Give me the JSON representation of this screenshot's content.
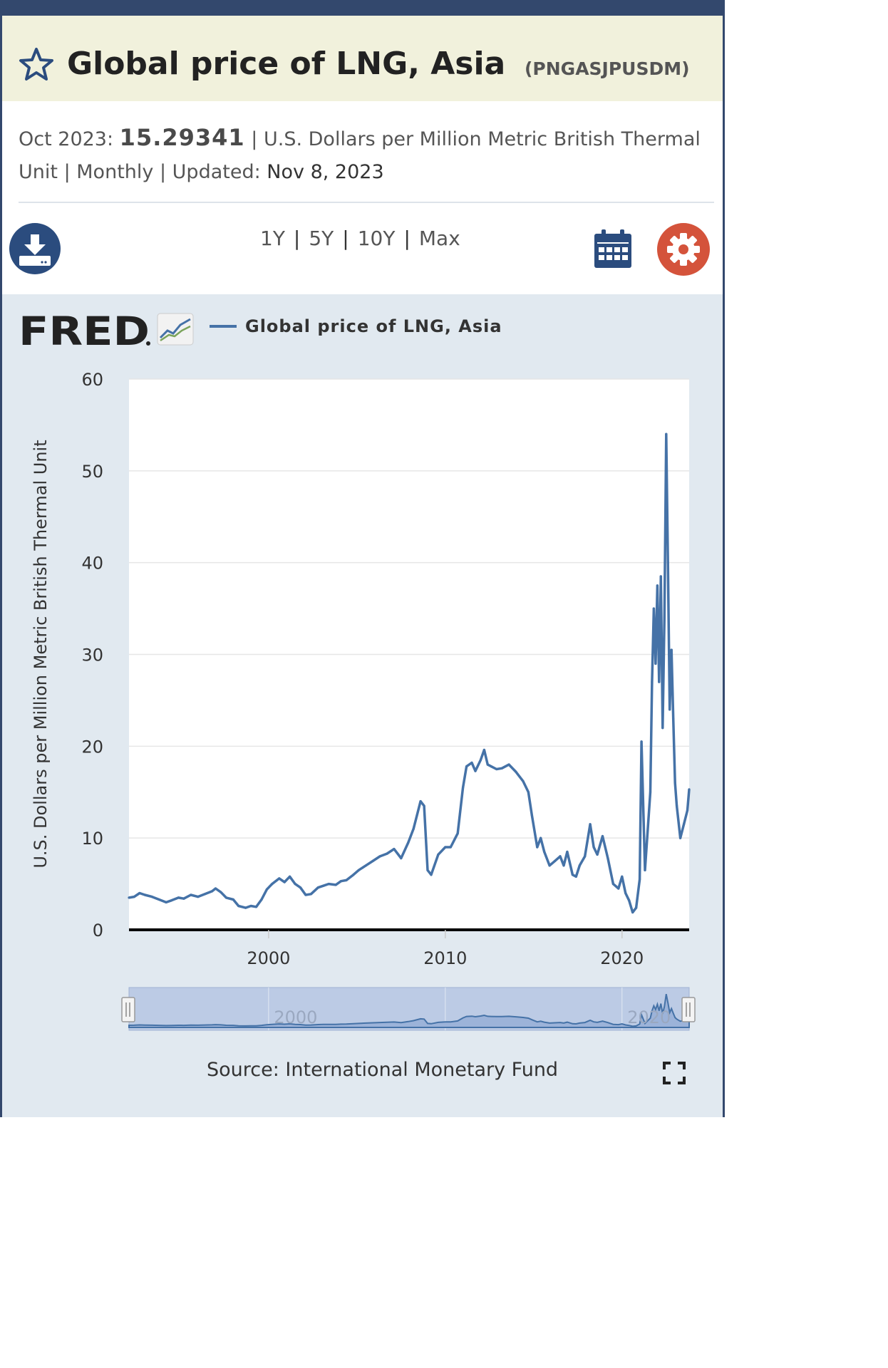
{
  "header": {
    "title": "Global price of LNG, Asia",
    "series_id": "(PNGASJPUSDM)"
  },
  "meta": {
    "period_label": "Oct 2023:",
    "value": "15.29341",
    "sep1": "|",
    "units": "U.S. Dollars per Million Metric British Thermal Unit",
    "sep2": "|",
    "frequency": "Monthly",
    "sep3": "|",
    "updated_label": "Updated:",
    "updated_value": "Nov 8, 2023"
  },
  "toolbar": {
    "ranges": [
      "1Y",
      "5Y",
      "10Y",
      "Max"
    ],
    "separator": "|"
  },
  "logo": {
    "text": "FRED"
  },
  "source": "Source: International Monetary Fund",
  "colors": {
    "frame": "#33486d",
    "title_band": "#f1f1dc",
    "series": "#4572a7",
    "download": "#2b4c7e",
    "settings": "#d4533b",
    "panel": "#e1e9f0"
  },
  "icons": {
    "favorite": "star-icon",
    "download": "download-icon",
    "calendar": "calendar-icon",
    "settings": "gear-icon",
    "fullscreen": "fullscreen-icon"
  },
  "chart_data": {
    "type": "line",
    "legend": "Global price of LNG, Asia",
    "ylabel": "U.S. Dollars per Million Metric British Thermal Unit",
    "xlabel": "",
    "ylim": [
      0,
      60
    ],
    "xlim": [
      1992.1,
      2023.8
    ],
    "yticks": [
      0,
      10,
      20,
      30,
      40,
      50,
      60
    ],
    "xticks": [
      2000,
      2010,
      2020
    ],
    "navigator_label": [
      "2000",
      "2020"
    ],
    "grid": true,
    "series": [
      {
        "name": "Global price of LNG, Asia",
        "x": [
          1992.1,
          1992.4,
          1992.7,
          1993.0,
          1993.4,
          1993.8,
          1994.2,
          1994.5,
          1994.9,
          1995.2,
          1995.6,
          1996.0,
          1996.4,
          1996.8,
          1997.0,
          1997.3,
          1997.6,
          1998.0,
          1998.3,
          1998.7,
          1999.0,
          1999.3,
          1999.6,
          1999.9,
          2000.2,
          2000.6,
          2000.9,
          2001.2,
          2001.5,
          2001.8,
          2002.1,
          2002.4,
          2002.8,
          2003.1,
          2003.4,
          2003.8,
          2004.1,
          2004.4,
          2004.8,
          2005.1,
          2005.5,
          2005.9,
          2006.3,
          2006.7,
          2007.1,
          2007.5,
          2007.9,
          2008.2,
          2008.6,
          2008.8,
          2009.0,
          2009.2,
          2009.6,
          2010.0,
          2010.3,
          2010.7,
          2011.0,
          2011.2,
          2011.5,
          2011.7,
          2012.0,
          2012.2,
          2012.4,
          2012.6,
          2012.9,
          2013.2,
          2013.6,
          2014.0,
          2014.4,
          2014.7,
          2014.9,
          2015.2,
          2015.4,
          2015.6,
          2015.9,
          2016.2,
          2016.5,
          2016.7,
          2016.9,
          2017.2,
          2017.4,
          2017.6,
          2017.9,
          2018.2,
          2018.4,
          2018.6,
          2018.9,
          2019.2,
          2019.5,
          2019.8,
          2020.0,
          2020.2,
          2020.4,
          2020.6,
          2020.8,
          2021.0,
          2021.1,
          2021.3,
          2021.6,
          2021.7,
          2021.8,
          2021.9,
          2022.0,
          2022.1,
          2022.2,
          2022.3,
          2022.4,
          2022.5,
          2022.6,
          2022.7,
          2022.8,
          2022.9,
          2023.0,
          2023.1,
          2023.3,
          2023.5,
          2023.7,
          2023.8
        ],
        "values": [
          3.5,
          3.6,
          4.0,
          3.8,
          3.6,
          3.3,
          3.0,
          3.2,
          3.5,
          3.4,
          3.8,
          3.6,
          3.9,
          4.2,
          4.5,
          4.1,
          3.5,
          3.3,
          2.6,
          2.4,
          2.6,
          2.5,
          3.3,
          4.4,
          5.0,
          5.6,
          5.2,
          5.8,
          5.0,
          4.6,
          3.8,
          3.9,
          4.6,
          4.8,
          5.0,
          4.9,
          5.3,
          5.4,
          6.0,
          6.5,
          7.0,
          7.5,
          8.0,
          8.3,
          8.8,
          7.8,
          9.5,
          11.0,
          14.0,
          13.5,
          6.5,
          6.0,
          8.2,
          9.0,
          9.0,
          10.5,
          15.5,
          17.8,
          18.2,
          17.3,
          18.5,
          19.6,
          18.0,
          17.8,
          17.5,
          17.6,
          18.0,
          17.2,
          16.2,
          15.0,
          12.5,
          9.0,
          10.0,
          8.5,
          7.0,
          7.5,
          8.0,
          7.0,
          8.5,
          6.0,
          5.8,
          7.0,
          8.0,
          11.5,
          9.0,
          8.2,
          10.2,
          7.8,
          5.0,
          4.5,
          5.8,
          4.0,
          3.2,
          1.9,
          2.4,
          5.5,
          20.5,
          6.5,
          15.0,
          27.0,
          35.0,
          29.0,
          37.5,
          27.0,
          38.5,
          22.0,
          34.0,
          54.0,
          40.0,
          24.0,
          30.5,
          23.0,
          16.0,
          13.5,
          10.0,
          11.5,
          13.0,
          15.3
        ]
      }
    ]
  }
}
